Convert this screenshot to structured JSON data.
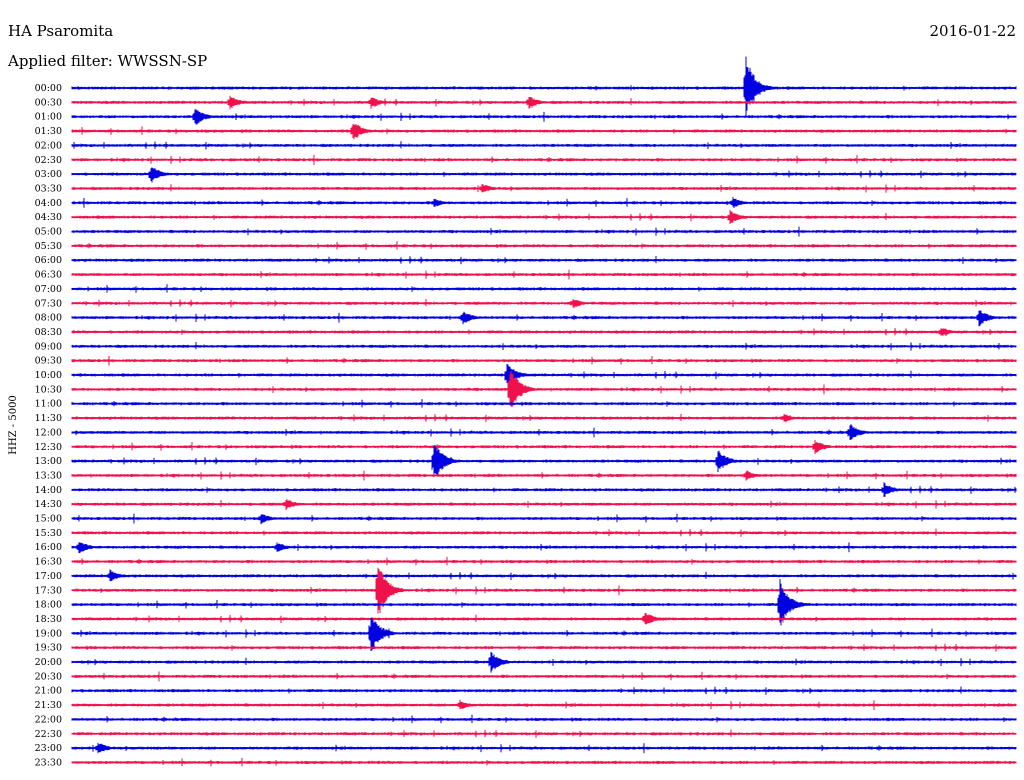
{
  "header": {
    "station": "HA Psaromita",
    "date": "2016-01-22",
    "filter_text": "Applied filter: WWSSN-SP"
  },
  "chart_data": {
    "type": "line",
    "title": "HA Psaromita",
    "subtitle": "Applied filter: WWSSN-SP",
    "ylabel": "HHZ - 5000",
    "row_times": [
      "00:00",
      "00:30",
      "01:00",
      "01:30",
      "02:00",
      "02:30",
      "03:00",
      "03:30",
      "04:00",
      "04:30",
      "05:00",
      "05:30",
      "06:00",
      "06:30",
      "07:00",
      "07:30",
      "08:00",
      "08:30",
      "09:00",
      "09:30",
      "10:00",
      "10:30",
      "11:00",
      "11:30",
      "12:00",
      "12:30",
      "13:00",
      "13:30",
      "14:00",
      "14:30",
      "15:00",
      "15:30",
      "16:00",
      "16:30",
      "17:00",
      "17:30",
      "18:00",
      "18:30",
      "19:00",
      "19:30",
      "20:00",
      "20:30",
      "21:00",
      "21:30",
      "22:00",
      "22:30",
      "23:00",
      "23:30"
    ],
    "colors": [
      "#0000e0",
      "#f0104c"
    ],
    "row_minutes": 30,
    "events": [
      {
        "row": 0,
        "minute": 21.4,
        "amp": 34
      },
      {
        "row": 1,
        "minute": 5.0,
        "amp": 8
      },
      {
        "row": 1,
        "minute": 9.5,
        "amp": 7
      },
      {
        "row": 1,
        "minute": 14.5,
        "amp": 8
      },
      {
        "row": 2,
        "minute": 3.9,
        "amp": 10
      },
      {
        "row": 3,
        "minute": 8.9,
        "amp": 12
      },
      {
        "row": 6,
        "minute": 2.5,
        "amp": 10
      },
      {
        "row": 7,
        "minute": 13.0,
        "amp": 6
      },
      {
        "row": 8,
        "minute": 11.5,
        "amp": 5
      },
      {
        "row": 8,
        "minute": 21.0,
        "amp": 6
      },
      {
        "row": 9,
        "minute": 20.9,
        "amp": 8
      },
      {
        "row": 15,
        "minute": 15.9,
        "amp": 6
      },
      {
        "row": 16,
        "minute": 12.4,
        "amp": 8
      },
      {
        "row": 16,
        "minute": 28.8,
        "amp": 10
      },
      {
        "row": 17,
        "minute": 27.6,
        "amp": 6
      },
      {
        "row": 20,
        "minute": 13.8,
        "amp": 14
      },
      {
        "row": 21,
        "minute": 13.9,
        "amp": 26
      },
      {
        "row": 23,
        "minute": 22.6,
        "amp": 6
      },
      {
        "row": 24,
        "minute": 24.7,
        "amp": 10
      },
      {
        "row": 25,
        "minute": 23.6,
        "amp": 8
      },
      {
        "row": 26,
        "minute": 11.5,
        "amp": 22
      },
      {
        "row": 26,
        "minute": 20.5,
        "amp": 14
      },
      {
        "row": 27,
        "minute": 21.4,
        "amp": 6
      },
      {
        "row": 28,
        "minute": 25.8,
        "amp": 8
      },
      {
        "row": 29,
        "minute": 6.8,
        "amp": 6
      },
      {
        "row": 30,
        "minute": 6.0,
        "amp": 6
      },
      {
        "row": 32,
        "minute": 0.2,
        "amp": 8
      },
      {
        "row": 32,
        "minute": 6.5,
        "amp": 6
      },
      {
        "row": 34,
        "minute": 1.2,
        "amp": 7
      },
      {
        "row": 35,
        "minute": 9.7,
        "amp": 32
      },
      {
        "row": 36,
        "minute": 22.5,
        "amp": 26
      },
      {
        "row": 37,
        "minute": 18.2,
        "amp": 8
      },
      {
        "row": 38,
        "minute": 9.5,
        "amp": 22
      },
      {
        "row": 40,
        "minute": 13.3,
        "amp": 12
      },
      {
        "row": 43,
        "minute": 12.3,
        "amp": 6
      },
      {
        "row": 46,
        "minute": 0.8,
        "amp": 7
      }
    ]
  }
}
